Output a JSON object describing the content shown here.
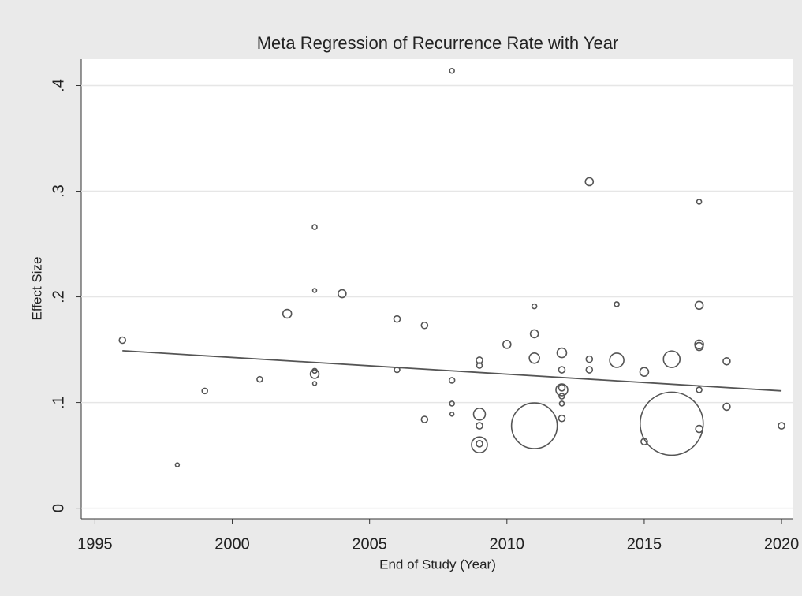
{
  "chart_data": {
    "type": "scatter",
    "title": "Meta Regression of Recurrence Rate with Year",
    "x_label": "End of Study (Year)",
    "y_label": "Effect Size",
    "xlim": [
      1994.5,
      2020.4
    ],
    "ylim": [
      -0.01,
      0.425
    ],
    "xticks": [
      1995,
      2000,
      2005,
      2010,
      2015,
      2020
    ],
    "yticks": [
      0,
      {
        "value": 0.1,
        "label": ".1"
      },
      {
        "value": 0.2,
        "label": ".2"
      },
      {
        "value": 0.3,
        "label": ".3"
      },
      {
        "value": 0.4,
        "label": ".4"
      }
    ],
    "grid": true,
    "color": "#555555",
    "series": [
      {
        "x": [
          1996,
          1998,
          1999,
          2001,
          2002,
          2003,
          2003,
          2003,
          2003,
          2003,
          2004,
          2006,
          2006,
          2007,
          2007,
          2008,
          2008,
          2008,
          2008,
          2009,
          2009,
          2009,
          2009,
          2009,
          2009,
          2010,
          2011,
          2011,
          2011,
          2011,
          2012,
          2012,
          2012,
          2012,
          2012,
          2012,
          2012,
          2013,
          2013,
          2013,
          2014,
          2014,
          2015,
          2015,
          2016,
          2016,
          2017,
          2017,
          2017,
          2017,
          2017,
          2017,
          2018,
          2018,
          2020
        ],
        "y": [
          0.159,
          0.041,
          0.111,
          0.122,
          0.184,
          0.266,
          0.206,
          0.13,
          0.127,
          0.118,
          0.203,
          0.179,
          0.131,
          0.173,
          0.084,
          0.414,
          0.121,
          0.099,
          0.089,
          0.14,
          0.135,
          0.089,
          0.078,
          0.061,
          0.06,
          0.155,
          0.191,
          0.165,
          0.142,
          0.078,
          0.147,
          0.131,
          0.114,
          0.112,
          0.106,
          0.099,
          0.085,
          0.309,
          0.141,
          0.131,
          0.193,
          0.14,
          0.129,
          0.063,
          0.141,
          0.08,
          0.29,
          0.192,
          0.155,
          0.153,
          0.112,
          0.075,
          0.139,
          0.096,
          0.078
        ],
        "sizes": [
          16,
          6,
          12,
          12,
          30,
          9,
          6,
          9,
          30,
          6,
          25,
          16,
          12,
          16,
          16,
          9,
          12,
          9,
          6,
          16,
          12,
          56,
          16,
          16,
          100,
          25,
          9,
          25,
          42,
          841,
          36,
          16,
          16,
          56,
          12,
          9,
          16,
          25,
          16,
          16,
          9,
          81,
          30,
          16,
          110,
          1600,
          9,
          25,
          30,
          25,
          12,
          20,
          20,
          20,
          16
        ]
      }
    ],
    "fit": {
      "x": [
        1996,
        2020
      ],
      "y": [
        0.149,
        0.111
      ]
    }
  }
}
